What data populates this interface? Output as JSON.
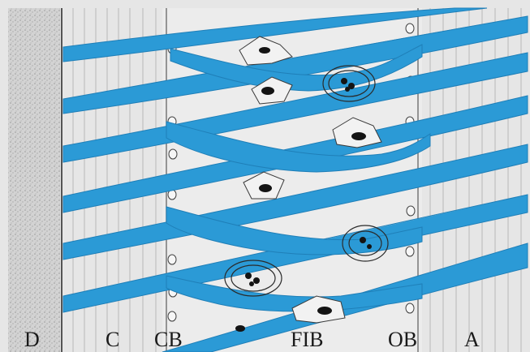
{
  "figure": {
    "labels": {
      "d": "D",
      "c": "C",
      "cb": "CB",
      "fib": "FIB",
      "ob": "OB",
      "a": "A"
    },
    "colors": {
      "fiber_blue": "#2b9ad6",
      "fiber_edge": "#1f7fb8",
      "background": "#e4e4e4",
      "stipple_zone": "#cfcfcf",
      "cell_fill": "#f2f2f2",
      "nucleus": "#141414",
      "outline": "#3a3a3a"
    }
  }
}
